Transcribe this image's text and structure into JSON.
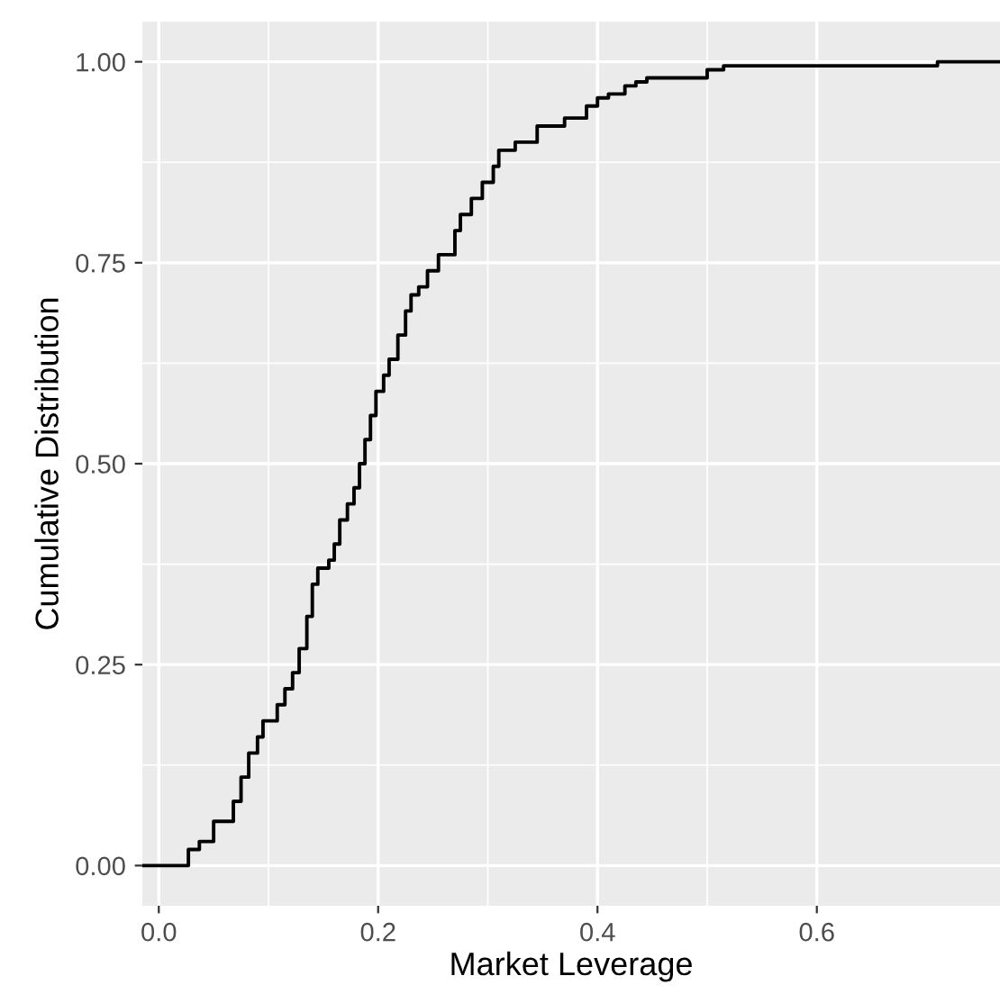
{
  "chart_data": {
    "type": "step",
    "xlabel": "Market Leverage",
    "ylabel": "Cumulative Distribution",
    "x": [
      -0.015,
      0.027,
      0.037,
      0.05,
      0.068,
      0.075,
      0.082,
      0.09,
      0.095,
      0.108,
      0.115,
      0.122,
      0.128,
      0.135,
      0.14,
      0.145,
      0.155,
      0.16,
      0.165,
      0.172,
      0.178,
      0.183,
      0.188,
      0.193,
      0.198,
      0.205,
      0.21,
      0.218,
      0.225,
      0.23,
      0.237,
      0.245,
      0.255,
      0.27,
      0.275,
      0.285,
      0.295,
      0.305,
      0.31,
      0.325,
      0.345,
      0.37,
      0.39,
      0.4,
      0.41,
      0.425,
      0.435,
      0.445,
      0.5,
      0.515,
      0.71,
      0.767
    ],
    "series": [
      {
        "color": "#000000",
        "values": [
          0,
          0.02,
          0.03,
          0.055,
          0.08,
          0.11,
          0.14,
          0.16,
          0.18,
          0.2,
          0.22,
          0.24,
          0.27,
          0.31,
          0.35,
          0.37,
          0.38,
          0.4,
          0.43,
          0.45,
          0.47,
          0.5,
          0.53,
          0.56,
          0.59,
          0.61,
          0.63,
          0.66,
          0.69,
          0.71,
          0.72,
          0.74,
          0.76,
          0.79,
          0.81,
          0.83,
          0.85,
          0.87,
          0.89,
          0.9,
          0.92,
          0.93,
          0.945,
          0.955,
          0.96,
          0.97,
          0.975,
          0.98,
          0.99,
          0.995,
          1.0,
          1.0
        ]
      }
    ],
    "xlim": [
      -0.015,
      0.767
    ],
    "ylim": [
      -0.05,
      1.05
    ],
    "xticks": [
      {
        "value": 0,
        "label": "0.0"
      },
      {
        "value": 0.2,
        "label": "0.2"
      },
      {
        "value": 0.4,
        "label": "0.4"
      },
      {
        "value": 0.6,
        "label": "0.6"
      }
    ],
    "yticks": [
      {
        "value": 0,
        "label": "0.00"
      },
      {
        "value": 0.25,
        "label": "0.25"
      },
      {
        "value": 0.5,
        "label": "0.50"
      },
      {
        "value": 0.75,
        "label": "0.75"
      },
      {
        "value": 1,
        "label": "1.00"
      }
    ],
    "grid": true
  }
}
